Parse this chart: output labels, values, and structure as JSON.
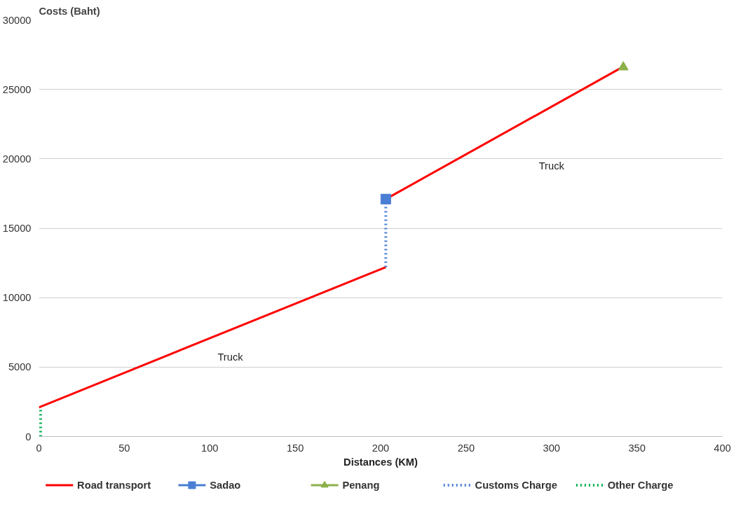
{
  "chart_data": {
    "type": "line",
    "xlabel": "Distances (KM)",
    "ylabel": "Costs (Baht)",
    "xlim": [
      0,
      400
    ],
    "xticks": [
      0,
      50,
      100,
      150,
      200,
      250,
      300,
      350,
      400
    ],
    "ylim": [
      0,
      30000
    ],
    "yticks": [
      0,
      5000,
      10000,
      15000,
      20000,
      25000,
      30000
    ],
    "grid": "y",
    "legend": "bottom",
    "series": [
      {
        "name": "Road transport",
        "color": "#ff0000",
        "line_style": "solid",
        "marker": "none",
        "x": [
          0,
          203,
          null,
          203,
          340
        ],
        "values": [
          2100,
          12200,
          null,
          17100,
          26500
        ]
      },
      {
        "name": "Sadao",
        "type": "scatter",
        "color": "#4a7fd4",
        "marker": "square",
        "x": [
          203
        ],
        "values": [
          17100
        ]
      },
      {
        "name": "Penang",
        "type": "scatter",
        "color": "#8db04a",
        "marker": "triangle",
        "x": [
          342
        ],
        "values": [
          26600
        ]
      },
      {
        "name": "Customs Charge",
        "color": "#4a7fd4",
        "line_style": "dotted",
        "marker": "none",
        "x": [
          203,
          203
        ],
        "values": [
          12200,
          17100
        ]
      },
      {
        "name": "Other Charge",
        "color": "#00b050",
        "line_style": "dotted",
        "marker": "none",
        "x": [
          1,
          1
        ],
        "values": [
          0,
          2100
        ]
      }
    ],
    "annotations": [
      "Truck",
      "Truck"
    ]
  }
}
